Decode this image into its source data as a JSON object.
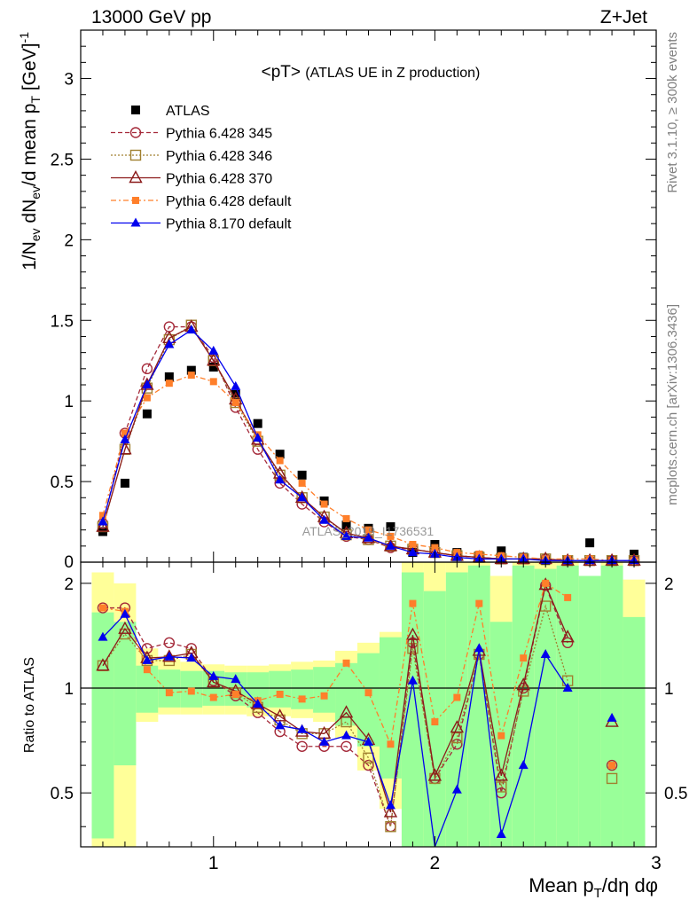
{
  "header": {
    "left": "13000 GeV pp",
    "right": "Z+Jet"
  },
  "side_labels": {
    "rivet": "Rivet 3.1.10, ≥ 300k events",
    "mcplots": "mcplots.cern.ch [arXiv:1306.3436]"
  },
  "watermark": "ATLAS_2019_I1736531",
  "colors": {
    "atlas": "#000000",
    "p345": "#a52a3a",
    "p346": "#a08030",
    "p370": "#8b1a1a",
    "p6def": "#ff7f2a",
    "p8def": "#0000ee",
    "band_yellow": "#ffff99",
    "band_green": "#99ff99"
  },
  "chart_data": [
    {
      "type": "line",
      "panel": "main",
      "title": "<pT>",
      "subtitle": "(ATLAS UE in Z production)",
      "xlabel": "Mean pT/dη dφ",
      "ylabel": "1/Nev dNev/d mean pT [GeV]-1",
      "xlim": [
        0.4,
        3.0
      ],
      "ylim": [
        0,
        3.3
      ],
      "yticks": [
        0.5,
        1,
        1.5,
        2,
        2.5,
        3
      ],
      "ytick_labels": [
        "0.5",
        "1",
        "1.5",
        "2",
        "2.5",
        "3"
      ],
      "x": [
        0.5,
        0.6,
        0.7,
        0.8,
        0.9,
        1.0,
        1.1,
        1.2,
        1.3,
        1.4,
        1.5,
        1.6,
        1.7,
        1.8,
        1.9,
        2.0,
        2.1,
        2.2,
        2.3,
        2.4,
        2.5,
        2.6,
        2.7,
        2.8,
        2.9
      ],
      "legend_position": "top-left",
      "series": [
        {
          "name": "ATLAS",
          "key": "atlas",
          "style": "data",
          "values": [
            0.19,
            0.49,
            0.92,
            1.15,
            1.19,
            1.21,
            1.04,
            0.86,
            0.67,
            0.54,
            0.38,
            0.23,
            0.21,
            0.22,
            0.06,
            0.11,
            0.06,
            0.04,
            0.07,
            0.03,
            0.01,
            0.01,
            0.12,
            0.01,
            0.05
          ]
        },
        {
          "name": "Pythia 6.428 345",
          "key": "p345",
          "style": "circle-open",
          "dash": "5,3",
          "values": [
            0.24,
            0.8,
            1.2,
            1.46,
            1.46,
            1.27,
            0.96,
            0.7,
            0.49,
            0.36,
            0.25,
            0.16,
            0.14,
            0.09,
            0.08,
            0.06,
            0.04,
            0.03,
            0.02,
            0.02,
            0.02,
            0.01,
            0.01,
            0.01,
            0.01
          ]
        },
        {
          "name": "Pythia 6.428 346",
          "key": "p346",
          "style": "square-open",
          "dash": "2,2",
          "values": [
            0.22,
            0.7,
            1.08,
            1.38,
            1.47,
            1.25,
            0.99,
            0.75,
            0.54,
            0.4,
            0.28,
            0.17,
            0.14,
            0.1,
            0.08,
            0.06,
            0.04,
            0.03,
            0.02,
            0.02,
            0.02,
            0.01,
            0.01,
            0.01,
            0.01
          ]
        },
        {
          "name": "Pythia 6.428 370",
          "key": "p370",
          "style": "triangle-open",
          "dash": "",
          "values": [
            0.22,
            0.7,
            1.1,
            1.39,
            1.46,
            1.25,
            1.01,
            0.76,
            0.55,
            0.4,
            0.28,
            0.18,
            0.15,
            0.1,
            0.08,
            0.06,
            0.04,
            0.03,
            0.02,
            0.02,
            0.02,
            0.01,
            0.01,
            0.01,
            0.01
          ]
        },
        {
          "name": "Pythia 6.428 default",
          "key": "p6def",
          "style": "square-filled",
          "dash": "6,3,2,3",
          "values": [
            0.29,
            0.8,
            1.02,
            1.11,
            1.16,
            1.12,
            0.99,
            0.79,
            0.63,
            0.49,
            0.36,
            0.27,
            0.2,
            0.16,
            0.11,
            0.09,
            0.06,
            0.05,
            0.04,
            0.03,
            0.02,
            0.02,
            0.02,
            0.01,
            0.01
          ]
        },
        {
          "name": "Pythia 8.170 default",
          "key": "p8def",
          "style": "triangle-filled",
          "dash": "",
          "values": [
            0.25,
            0.76,
            1.1,
            1.35,
            1.44,
            1.31,
            1.09,
            0.77,
            0.51,
            0.4,
            0.26,
            0.16,
            0.15,
            0.1,
            0.06,
            0.05,
            0.03,
            0.02,
            0.02,
            0.02,
            0.01,
            0.01,
            0.01,
            0.01,
            0.01
          ]
        }
      ]
    },
    {
      "type": "line",
      "panel": "ratio",
      "ylabel": "Ratio to ATLAS",
      "xlabel": "Mean pT/dη dφ",
      "xlim": [
        0.4,
        3.0
      ],
      "ylim": [
        0.35,
        2.3
      ],
      "xticks": [
        1,
        2,
        3
      ],
      "xtick_labels": [
        "1",
        "2",
        "3"
      ],
      "yticks": [
        0.5,
        1,
        2
      ],
      "ytick_labels": [
        "0.5",
        "1",
        "2"
      ],
      "x": [
        0.5,
        0.6,
        0.7,
        0.8,
        0.9,
        1.0,
        1.1,
        1.2,
        1.3,
        1.4,
        1.5,
        1.6,
        1.7,
        1.8,
        1.9,
        2.0,
        2.1,
        2.2,
        2.3,
        2.4,
        2.5,
        2.6,
        2.7,
        2.8,
        2.9
      ],
      "band_yellow_lo": [
        0.35,
        0.35,
        0.8,
        0.84,
        0.84,
        0.84,
        0.84,
        0.83,
        0.83,
        0.82,
        0.8,
        0.72,
        0.58,
        0.45,
        0.35,
        0.35,
        0.35,
        0.35,
        0.35,
        0.35,
        0.35,
        0.35,
        0.35,
        0.35,
        0.35
      ],
      "band_yellow_hi": [
        2.15,
        2.0,
        1.3,
        1.21,
        1.19,
        1.17,
        1.16,
        1.16,
        1.17,
        1.19,
        1.2,
        1.28,
        1.35,
        1.45,
        2.3,
        2.3,
        2.3,
        2.3,
        2.1,
        2.3,
        2.3,
        2.3,
        2.1,
        2.3,
        2.05
      ],
      "band_green_lo": [
        0.37,
        0.6,
        0.85,
        0.88,
        0.88,
        0.89,
        0.89,
        0.88,
        0.88,
        0.87,
        0.85,
        0.78,
        0.68,
        0.55,
        0.35,
        0.35,
        0.35,
        0.35,
        0.35,
        0.35,
        0.35,
        0.35,
        0.35,
        0.35,
        0.35
      ],
      "band_green_hi": [
        1.65,
        1.55,
        1.16,
        1.13,
        1.12,
        1.12,
        1.11,
        1.11,
        1.12,
        1.13,
        1.15,
        1.18,
        1.26,
        1.4,
        2.15,
        1.9,
        2.15,
        2.25,
        1.55,
        2.25,
        2.2,
        2.25,
        2.1,
        2.25,
        1.6
      ],
      "series": [
        {
          "name": "Pythia 6.428 345",
          "key": "p345",
          "style": "circle-open",
          "dash": "5,3",
          "values": [
            1.7,
            1.7,
            1.3,
            1.35,
            1.3,
            1.05,
            0.95,
            0.85,
            0.75,
            0.68,
            0.68,
            0.68,
            0.6,
            0.4,
            1.35,
            0.55,
            0.69,
            1.25,
            0.5,
            1.0,
            1.97,
            1.35,
            null,
            0.6,
            null
          ]
        },
        {
          "name": "Pythia 6.428 346",
          "key": "p346",
          "style": "square-open",
          "dash": "2,2",
          "values": [
            1.16,
            1.43,
            1.2,
            1.2,
            1.25,
            1.04,
            0.97,
            0.88,
            0.81,
            0.74,
            0.74,
            0.8,
            0.63,
            0.4,
            1.3,
            0.55,
            0.72,
            1.25,
            0.52,
            0.98,
            1.72,
            1.05,
            null,
            0.55,
            null
          ]
        },
        {
          "name": "Pythia 6.428 370",
          "key": "p370",
          "style": "triangle-open",
          "dash": "",
          "values": [
            1.16,
            1.48,
            1.22,
            1.23,
            1.26,
            1.04,
            0.98,
            0.9,
            0.83,
            0.75,
            0.74,
            0.85,
            0.71,
            0.44,
            1.42,
            0.56,
            0.77,
            1.28,
            0.56,
            1.02,
            1.98,
            1.4,
            null,
            0.8,
            null
          ]
        },
        {
          "name": "Pythia 6.428 default",
          "key": "p6def",
          "style": "square-filled",
          "dash": "6,3,2,3",
          "values": [
            1.7,
            1.66,
            1.13,
            0.97,
            0.98,
            0.94,
            0.96,
            0.92,
            0.96,
            0.93,
            0.95,
            1.18,
            0.97,
            0.69,
            1.75,
            0.8,
            0.94,
            1.75,
            0.73,
            1.22,
            2.0,
            1.82,
            null,
            0.6,
            null
          ]
        },
        {
          "name": "Pythia 8.170 default",
          "key": "p8def",
          "style": "triangle-filled",
          "dash": "",
          "values": [
            1.4,
            1.63,
            1.2,
            1.23,
            1.22,
            1.08,
            1.06,
            0.9,
            0.78,
            0.76,
            0.7,
            0.73,
            0.7,
            0.46,
            1.05,
            0.3,
            0.51,
            1.3,
            0.38,
            0.6,
            1.25,
            1.0,
            null,
            0.82,
            null
          ]
        }
      ]
    }
  ]
}
